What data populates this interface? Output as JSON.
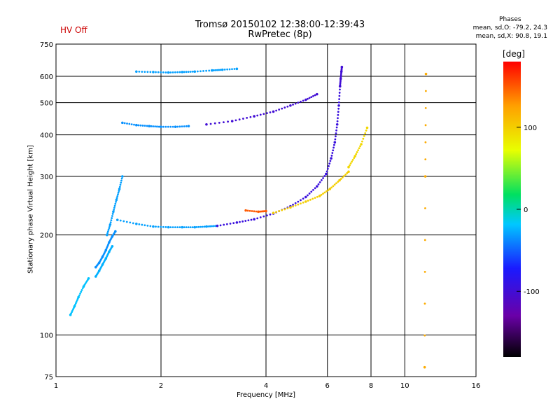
{
  "header": {
    "status": "HV Off",
    "title_line1": "Tromsø 20150102 12:38:00-12:39:43",
    "title_line2": "RwPretec (8p)",
    "phases_title": "Phases",
    "phases_O": "mean, sd,O: -79.2, 24.3",
    "phases_X": "mean, sd,X:  90.8, 19.1"
  },
  "colorbar": {
    "unit": "[deg]",
    "range": [
      -180,
      180
    ],
    "ticks": [
      100,
      0,
      -100
    ],
    "tick_labels": [
      "100",
      "0",
      "-100"
    ]
  },
  "chart_data": {
    "type": "scatter",
    "xlabel": "Frequency [MHz]",
    "ylabel": "Stationary phase Virtual Height [km]",
    "xscale": "log",
    "yscale": "log",
    "xlim": [
      1,
      16
    ],
    "ylim": [
      75,
      750
    ],
    "xticks": [
      1,
      2,
      4,
      6,
      8,
      10,
      16
    ],
    "xtick_labels": [
      "1",
      "2",
      "4",
      "6",
      "8",
      "10",
      "16"
    ],
    "yticks": [
      75,
      100,
      200,
      300,
      400,
      500,
      600,
      750
    ],
    "ytick_labels": [
      "75",
      "100",
      "200",
      "300",
      "400",
      "500",
      "600",
      "750"
    ],
    "grid": true,
    "segments": [
      {
        "x": [
          1.3,
          1.33,
          1.36,
          1.39,
          1.42,
          1.45,
          1.48
        ],
        "y": [
          160,
          165,
          172,
          180,
          190,
          198,
          205
        ],
        "phase": -35
      },
      {
        "x": [
          1.3,
          1.33,
          1.36,
          1.39,
          1.42,
          1.45
        ],
        "y": [
          150,
          156,
          163,
          170,
          178,
          185
        ],
        "phase": -25
      },
      {
        "x": [
          1.4,
          1.43,
          1.46,
          1.49,
          1.52,
          1.55
        ],
        "y": [
          200,
          215,
          235,
          255,
          275,
          300
        ],
        "phase": -30
      },
      {
        "x": [
          1.1,
          1.13,
          1.16,
          1.2,
          1.24
        ],
        "y": [
          115,
          122,
          130,
          140,
          148
        ],
        "phase": -20
      },
      {
        "x": [
          1.5,
          1.7,
          1.9,
          2.1,
          2.3,
          2.5,
          2.7,
          2.9
        ],
        "y": [
          222,
          216,
          212,
          211,
          211,
          211,
          212,
          213
        ],
        "phase": -30
      },
      {
        "x": [
          2.9,
          3.3,
          3.7,
          4.2,
          4.7,
          5.2,
          5.6,
          5.95
        ],
        "y": [
          213,
          218,
          223,
          232,
          244,
          260,
          280,
          305
        ],
        "phase": -95
      },
      {
        "x": [
          5.95,
          6.15,
          6.3,
          6.4,
          6.47,
          6.52
        ],
        "y": [
          305,
          340,
          380,
          430,
          490,
          560
        ],
        "phase": -95
      },
      {
        "x": [
          6.52,
          6.55,
          6.58,
          6.6
        ],
        "y": [
          560,
          590,
          620,
          640
        ],
        "phase": -100
      },
      {
        "x": [
          4.2,
          4.7,
          5.2,
          5.7,
          6.1,
          6.5,
          6.9
        ],
        "y": [
          233,
          242,
          252,
          262,
          275,
          292,
          310
        ],
        "phase": 100
      },
      {
        "x": [
          6.9,
          7.2,
          7.5,
          7.8
        ],
        "y": [
          320,
          345,
          375,
          420
        ],
        "phase": 95
      },
      {
        "x": [
          2.7,
          3.2,
          3.7,
          4.2,
          4.7,
          5.2,
          5.6
        ],
        "y": [
          430,
          440,
          455,
          470,
          490,
          510,
          530
        ],
        "phase": -100
      },
      {
        "x": [
          1.55,
          1.7,
          1.85,
          2.0,
          2.2,
          2.4
        ],
        "y": [
          435,
          428,
          425,
          423,
          423,
          425
        ],
        "phase": -35
      },
      {
        "x": [
          1.7,
          1.9,
          2.1,
          2.3,
          2.5,
          2.8,
          3.0,
          3.3
        ],
        "y": [
          620,
          618,
          616,
          618,
          620,
          625,
          628,
          632
        ],
        "phase": -30
      },
      {
        "x": [
          11.4,
          11.45,
          11.5
        ],
        "y": [
          80,
          300,
          610
        ],
        "phase": 120
      },
      {
        "x": [
          3.5,
          3.8,
          4.0
        ],
        "y": [
          237,
          235,
          236
        ],
        "phase": 150
      }
    ]
  }
}
